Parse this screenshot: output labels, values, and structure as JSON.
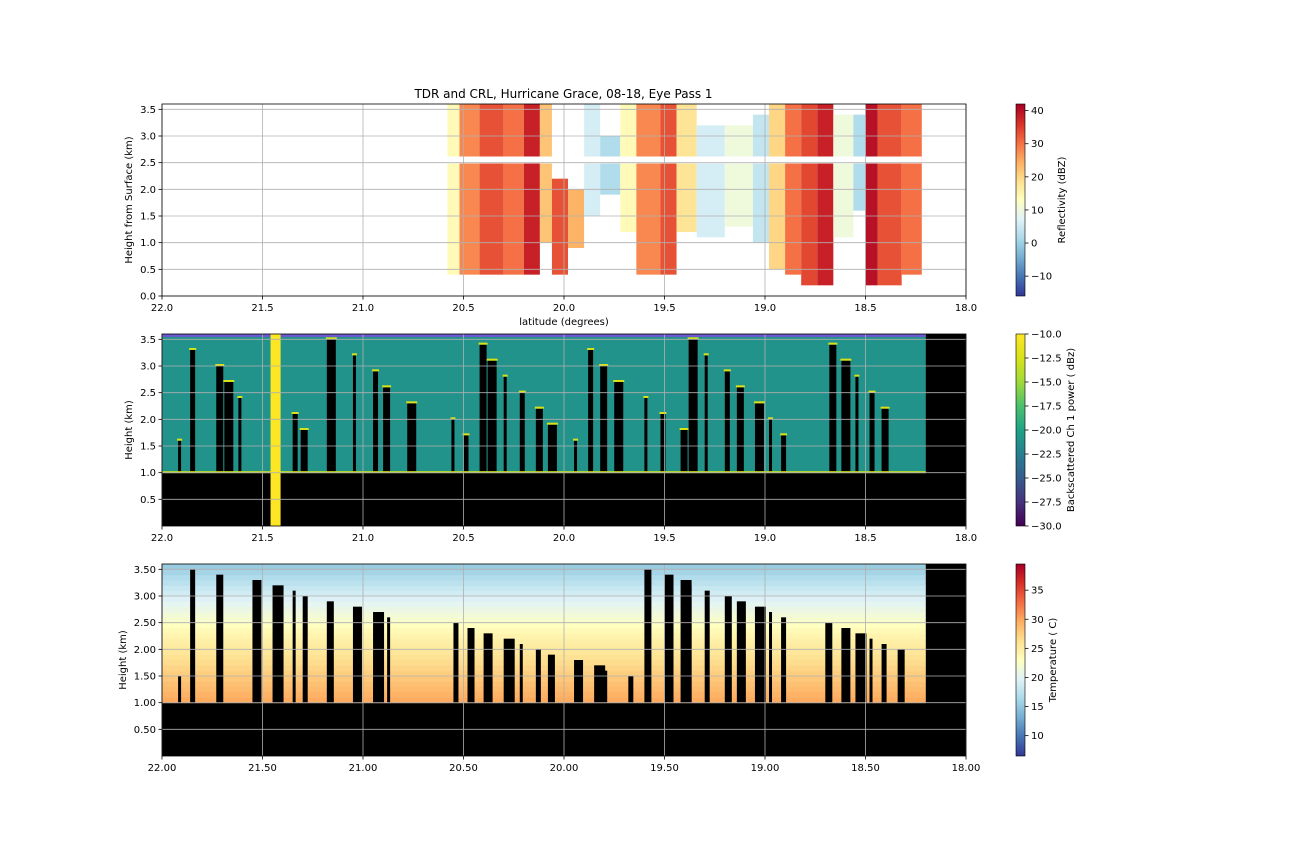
{
  "title": "TDR and CRL, Hurricane Grace, 08-18, Eye Pass 1",
  "chart_data": [
    {
      "type": "heatmap",
      "title": "TDR and CRL, Hurricane Grace, 08-18, Eye Pass 1",
      "xlabel": "latitude (degrees)",
      "ylabel": "Height from Surface (km)",
      "xlim": [
        22.0,
        18.0
      ],
      "ylim": [
        0.0,
        3.6
      ],
      "xticks": [
        "22.0",
        "21.5",
        "21.0",
        "20.5",
        "20.0",
        "19.5",
        "19.0",
        "18.5",
        "18.0"
      ],
      "xtick_values": [
        22.0,
        21.5,
        21.0,
        20.5,
        20.0,
        19.5,
        19.0,
        18.5,
        18.0
      ],
      "yticks": [
        "0.0",
        "0.5",
        "1.0",
        "1.5",
        "2.0",
        "2.5",
        "3.0",
        "3.5"
      ],
      "ytick_values": [
        0.0,
        0.5,
        1.0,
        1.5,
        2.0,
        2.5,
        3.0,
        3.5
      ],
      "grid": true,
      "colorbar": {
        "label": "Reflectivity (dBZ)",
        "min": -16,
        "max": 42,
        "ticks": [
          -10,
          0,
          10,
          20,
          30,
          40
        ],
        "tick_labels": [
          "−10",
          "0",
          "10",
          "20",
          "30",
          "40"
        ],
        "cmap": "RdYlBu_r"
      },
      "data_extent": {
        "lat_start": 20.58,
        "lat_end": 18.22,
        "height_top": 3.6,
        "height_bottom": 0.4
      },
      "missing_band_height": 2.55,
      "columns": [
        {
          "lat_from": 20.58,
          "lat_to": 20.52,
          "dbz": 14,
          "h_top": 3.6,
          "h_bot": 0.4
        },
        {
          "lat_from": 20.52,
          "lat_to": 20.42,
          "dbz": 28,
          "h_top": 3.6,
          "h_bot": 0.4
        },
        {
          "lat_from": 20.42,
          "lat_to": 20.3,
          "dbz": 33,
          "h_top": 3.6,
          "h_bot": 0.4
        },
        {
          "lat_from": 20.3,
          "lat_to": 20.2,
          "dbz": 30,
          "h_top": 3.6,
          "h_bot": 0.4
        },
        {
          "lat_from": 20.2,
          "lat_to": 20.12,
          "dbz": 38,
          "h_top": 3.6,
          "h_bot": 0.4
        },
        {
          "lat_from": 20.12,
          "lat_to": 20.06,
          "dbz": 22,
          "h_top": 3.6,
          "h_bot": 1.0
        },
        {
          "lat_from": 20.06,
          "lat_to": 19.98,
          "dbz": 33,
          "h_top": 2.2,
          "h_bot": 0.4
        },
        {
          "lat_from": 19.98,
          "lat_to": 19.9,
          "dbz": 24,
          "h_top": 2.0,
          "h_bot": 0.9
        },
        {
          "lat_from": 19.9,
          "lat_to": 19.82,
          "dbz": 6,
          "h_top": 3.6,
          "h_bot": 1.5
        },
        {
          "lat_from": 19.82,
          "lat_to": 19.72,
          "dbz": 2,
          "h_top": 3.0,
          "h_bot": 1.9
        },
        {
          "lat_from": 19.72,
          "lat_to": 19.64,
          "dbz": 14,
          "h_top": 3.6,
          "h_bot": 1.2
        },
        {
          "lat_from": 19.64,
          "lat_to": 19.52,
          "dbz": 28,
          "h_top": 3.6,
          "h_bot": 0.4
        },
        {
          "lat_from": 19.52,
          "lat_to": 19.44,
          "dbz": 33,
          "h_top": 3.6,
          "h_bot": 0.4
        },
        {
          "lat_from": 19.44,
          "lat_to": 19.34,
          "dbz": 18,
          "h_top": 3.6,
          "h_bot": 1.2
        },
        {
          "lat_from": 19.34,
          "lat_to": 19.2,
          "dbz": 6,
          "h_top": 3.2,
          "h_bot": 1.1
        },
        {
          "lat_from": 19.2,
          "lat_to": 19.06,
          "dbz": 10,
          "h_top": 3.2,
          "h_bot": 1.3
        },
        {
          "lat_from": 19.06,
          "lat_to": 18.98,
          "dbz": 4,
          "h_top": 3.4,
          "h_bot": 1.0
        },
        {
          "lat_from": 18.98,
          "lat_to": 18.9,
          "dbz": 20,
          "h_top": 3.6,
          "h_bot": 0.5
        },
        {
          "lat_from": 18.9,
          "lat_to": 18.82,
          "dbz": 30,
          "h_top": 3.6,
          "h_bot": 0.4
        },
        {
          "lat_from": 18.82,
          "lat_to": 18.74,
          "dbz": 34,
          "h_top": 3.6,
          "h_bot": 0.2
        },
        {
          "lat_from": 18.74,
          "lat_to": 18.66,
          "dbz": 38,
          "h_top": 3.6,
          "h_bot": 0.2
        },
        {
          "lat_from": 18.66,
          "lat_to": 18.56,
          "dbz": 10,
          "h_top": 3.4,
          "h_bot": 1.1
        },
        {
          "lat_from": 18.56,
          "lat_to": 18.5,
          "dbz": 2,
          "h_top": 3.4,
          "h_bot": 1.6
        },
        {
          "lat_from": 18.5,
          "lat_to": 18.44,
          "dbz": 40,
          "h_top": 3.6,
          "h_bot": 0.2
        },
        {
          "lat_from": 18.44,
          "lat_to": 18.32,
          "dbz": 33,
          "h_top": 3.6,
          "h_bot": 0.2
        },
        {
          "lat_from": 18.32,
          "lat_to": 18.22,
          "dbz": 30,
          "h_top": 3.6,
          "h_bot": 0.4
        }
      ]
    },
    {
      "type": "heatmap",
      "title": "",
      "xlabel": "",
      "ylabel": "Height (km)",
      "xlim": [
        22.0,
        18.0
      ],
      "ylim": [
        0.0,
        3.6
      ],
      "xticks": [
        "22.0",
        "21.5",
        "21.0",
        "20.5",
        "20.0",
        "19.5",
        "19.0",
        "18.5",
        "18.0"
      ],
      "xtick_values": [
        22.0,
        21.5,
        21.0,
        20.5,
        20.0,
        19.5,
        19.0,
        18.5,
        18.0
      ],
      "yticks": [
        "0.5",
        "1.0",
        "1.5",
        "2.0",
        "2.5",
        "3.0",
        "3.5"
      ],
      "ytick_values": [
        0.5,
        1.0,
        1.5,
        2.0,
        2.5,
        3.0,
        3.5
      ],
      "grid": true,
      "colorbar": {
        "label": "Backscattered Ch 1 power ( dBz)",
        "min": -30.0,
        "max": -10.0,
        "ticks": [
          -30.0,
          -27.5,
          -25.0,
          -22.5,
          -20.0,
          -17.5,
          -15.0,
          -12.5,
          -10.0
        ],
        "tick_labels": [
          "−30.0",
          "−27.5",
          "−25.0",
          "−22.5",
          "−20.0",
          "−17.5",
          "−15.0",
          "−12.5",
          "−10.0"
        ],
        "cmap": "viridis"
      },
      "data_extent": {
        "lat_start": 22.0,
        "lat_end": 18.2,
        "height_top": 3.6,
        "surface_height": 1.0
      },
      "saturated_column": {
        "lat_from": 21.46,
        "lat_to": 21.41,
        "value": -10.0
      },
      "cloud_columns_lat": [
        21.92,
        21.86,
        21.73,
        21.69,
        21.62,
        21.35,
        21.31,
        21.18,
        21.05,
        20.95,
        20.9,
        20.78,
        20.56,
        20.5,
        20.42,
        20.38,
        20.3,
        20.22,
        20.14,
        20.08,
        19.95,
        19.88,
        19.82,
        19.75,
        19.6,
        19.52,
        19.42,
        19.38,
        19.3,
        19.2,
        19.14,
        19.05,
        18.98,
        18.92,
        18.68,
        18.62,
        18.55,
        18.48,
        18.42
      ]
    },
    {
      "type": "heatmap",
      "title": "",
      "xlabel": "",
      "ylabel": "Height (km)",
      "xlim": [
        22.0,
        18.0
      ],
      "ylim": [
        0.0,
        3.6
      ],
      "xticks": [
        "22.00",
        "21.50",
        "21.00",
        "20.50",
        "20.00",
        "19.50",
        "19.00",
        "18.50",
        "18.00"
      ],
      "xtick_values": [
        22.0,
        21.5,
        21.0,
        20.5,
        20.0,
        19.5,
        19.0,
        18.5,
        18.0
      ],
      "yticks": [
        "0.50",
        "1.00",
        "1.50",
        "2.00",
        "2.50",
        "3.00",
        "3.50"
      ],
      "ytick_values": [
        0.5,
        1.0,
        1.5,
        2.0,
        2.5,
        3.0,
        3.5
      ],
      "grid": true,
      "colorbar": {
        "label": "Temperature ( C)",
        "min": 6.5,
        "max": 39.5,
        "ticks": [
          10,
          15,
          20,
          25,
          30,
          35
        ],
        "tick_labels": [
          "10",
          "15",
          "20",
          "25",
          "30",
          "35"
        ],
        "cmap": "RdYlBu_r"
      },
      "data_extent": {
        "lat_start": 22.0,
        "lat_end": 18.2,
        "height_top": 3.6,
        "surface_height": 1.0
      },
      "temperature_profile": {
        "near_surface_C": 30,
        "mid_C": 24,
        "top_C": 15
      },
      "cloud_columns_lat": [
        21.92,
        21.86,
        21.73,
        21.55,
        21.45,
        21.35,
        21.3,
        21.18,
        21.05,
        20.95,
        20.88,
        20.55,
        20.48,
        20.4,
        20.3,
        20.22,
        20.14,
        20.08,
        19.95,
        19.85,
        19.8,
        19.68,
        19.6,
        19.5,
        19.42,
        19.38,
        19.3,
        19.2,
        19.14,
        19.05,
        18.98,
        18.92,
        18.7,
        18.62,
        18.55,
        18.48,
        18.42,
        18.34
      ]
    }
  ]
}
